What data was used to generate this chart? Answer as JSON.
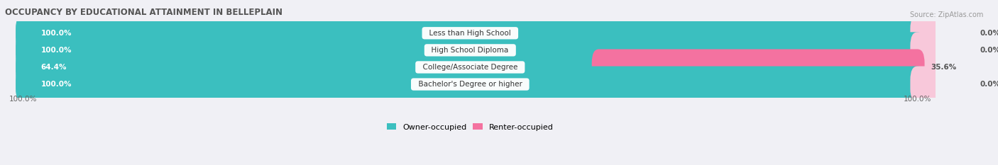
{
  "title": "OCCUPANCY BY EDUCATIONAL ATTAINMENT IN BELLEPLAIN",
  "source": "Source: ZipAtlas.com",
  "categories": [
    "Less than High School",
    "High School Diploma",
    "College/Associate Degree",
    "Bachelor's Degree or higher"
  ],
  "owner_pct": [
    100.0,
    100.0,
    64.4,
    100.0
  ],
  "renter_pct": [
    0.0,
    0.0,
    35.6,
    0.0
  ],
  "owner_color": "#3bbfbf",
  "renter_color": "#f472a0",
  "renter_color_light": "#f8c8da",
  "bar_bg_color": "#e4e4ec",
  "title_color": "#555555",
  "source_color": "#999999",
  "legend_owner": "Owner-occupied",
  "legend_renter": "Renter-occupied",
  "axis_label_left": "100.0%",
  "axis_label_right": "100.0%",
  "figsize": [
    14.06,
    2.33
  ],
  "dpi": 100
}
